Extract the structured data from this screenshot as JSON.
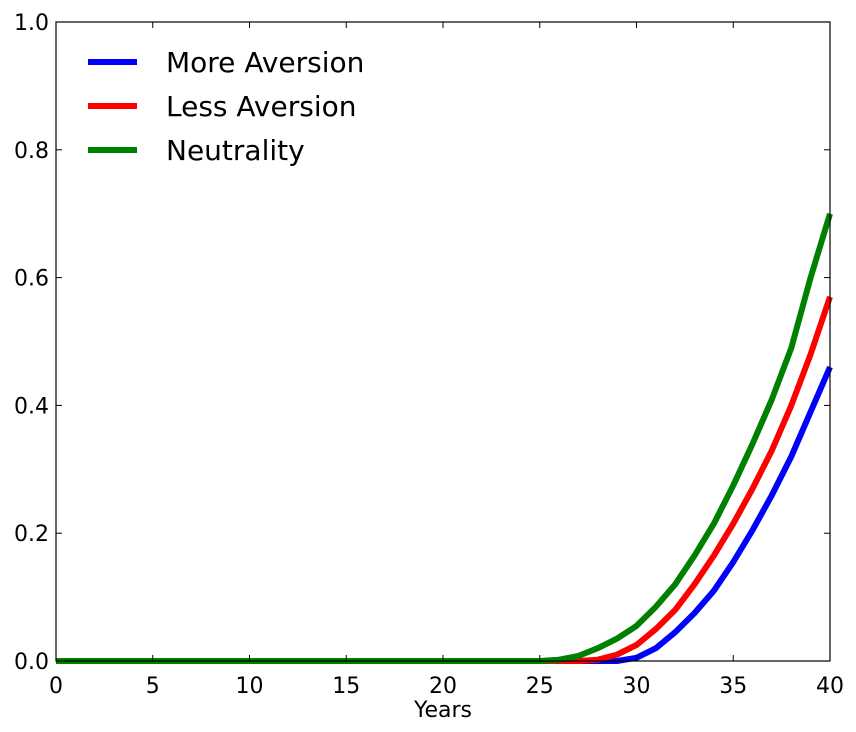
{
  "chart_data": {
    "type": "line",
    "title": "",
    "xlabel": "Years",
    "ylabel": "",
    "xlim": [
      0,
      40
    ],
    "ylim": [
      0.0,
      1.0
    ],
    "xticks": [
      "0",
      "5",
      "10",
      "15",
      "20",
      "25",
      "30",
      "35",
      "40"
    ],
    "yticks": [
      "0.0",
      "0.2",
      "0.4",
      "0.6",
      "0.8",
      "1.0"
    ],
    "grid": false,
    "legend_position": "top-left",
    "x": [
      0,
      5,
      10,
      15,
      20,
      25,
      26,
      27,
      28,
      29,
      30,
      31,
      32,
      33,
      34,
      35,
      36,
      37,
      38,
      39,
      40
    ],
    "series": [
      {
        "name": "More Aversion",
        "color": "#0000ff",
        "values": [
          0,
          0,
          0,
          0,
          0,
          0,
          0,
          0,
          0,
          0,
          0.005,
          0.02,
          0.045,
          0.075,
          0.11,
          0.155,
          0.205,
          0.26,
          0.32,
          0.39,
          0.46
        ]
      },
      {
        "name": "Less Aversion",
        "color": "#ff0000",
        "values": [
          0,
          0,
          0,
          0,
          0,
          0,
          0,
          0,
          0.002,
          0.01,
          0.025,
          0.05,
          0.08,
          0.12,
          0.165,
          0.215,
          0.27,
          0.33,
          0.4,
          0.48,
          0.57
        ]
      },
      {
        "name": "Neutrality",
        "color": "#008000",
        "values": [
          0,
          0,
          0,
          0,
          0,
          0,
          0.002,
          0.008,
          0.02,
          0.035,
          0.055,
          0.085,
          0.12,
          0.165,
          0.215,
          0.275,
          0.34,
          0.41,
          0.49,
          0.6,
          0.7
        ]
      }
    ]
  }
}
